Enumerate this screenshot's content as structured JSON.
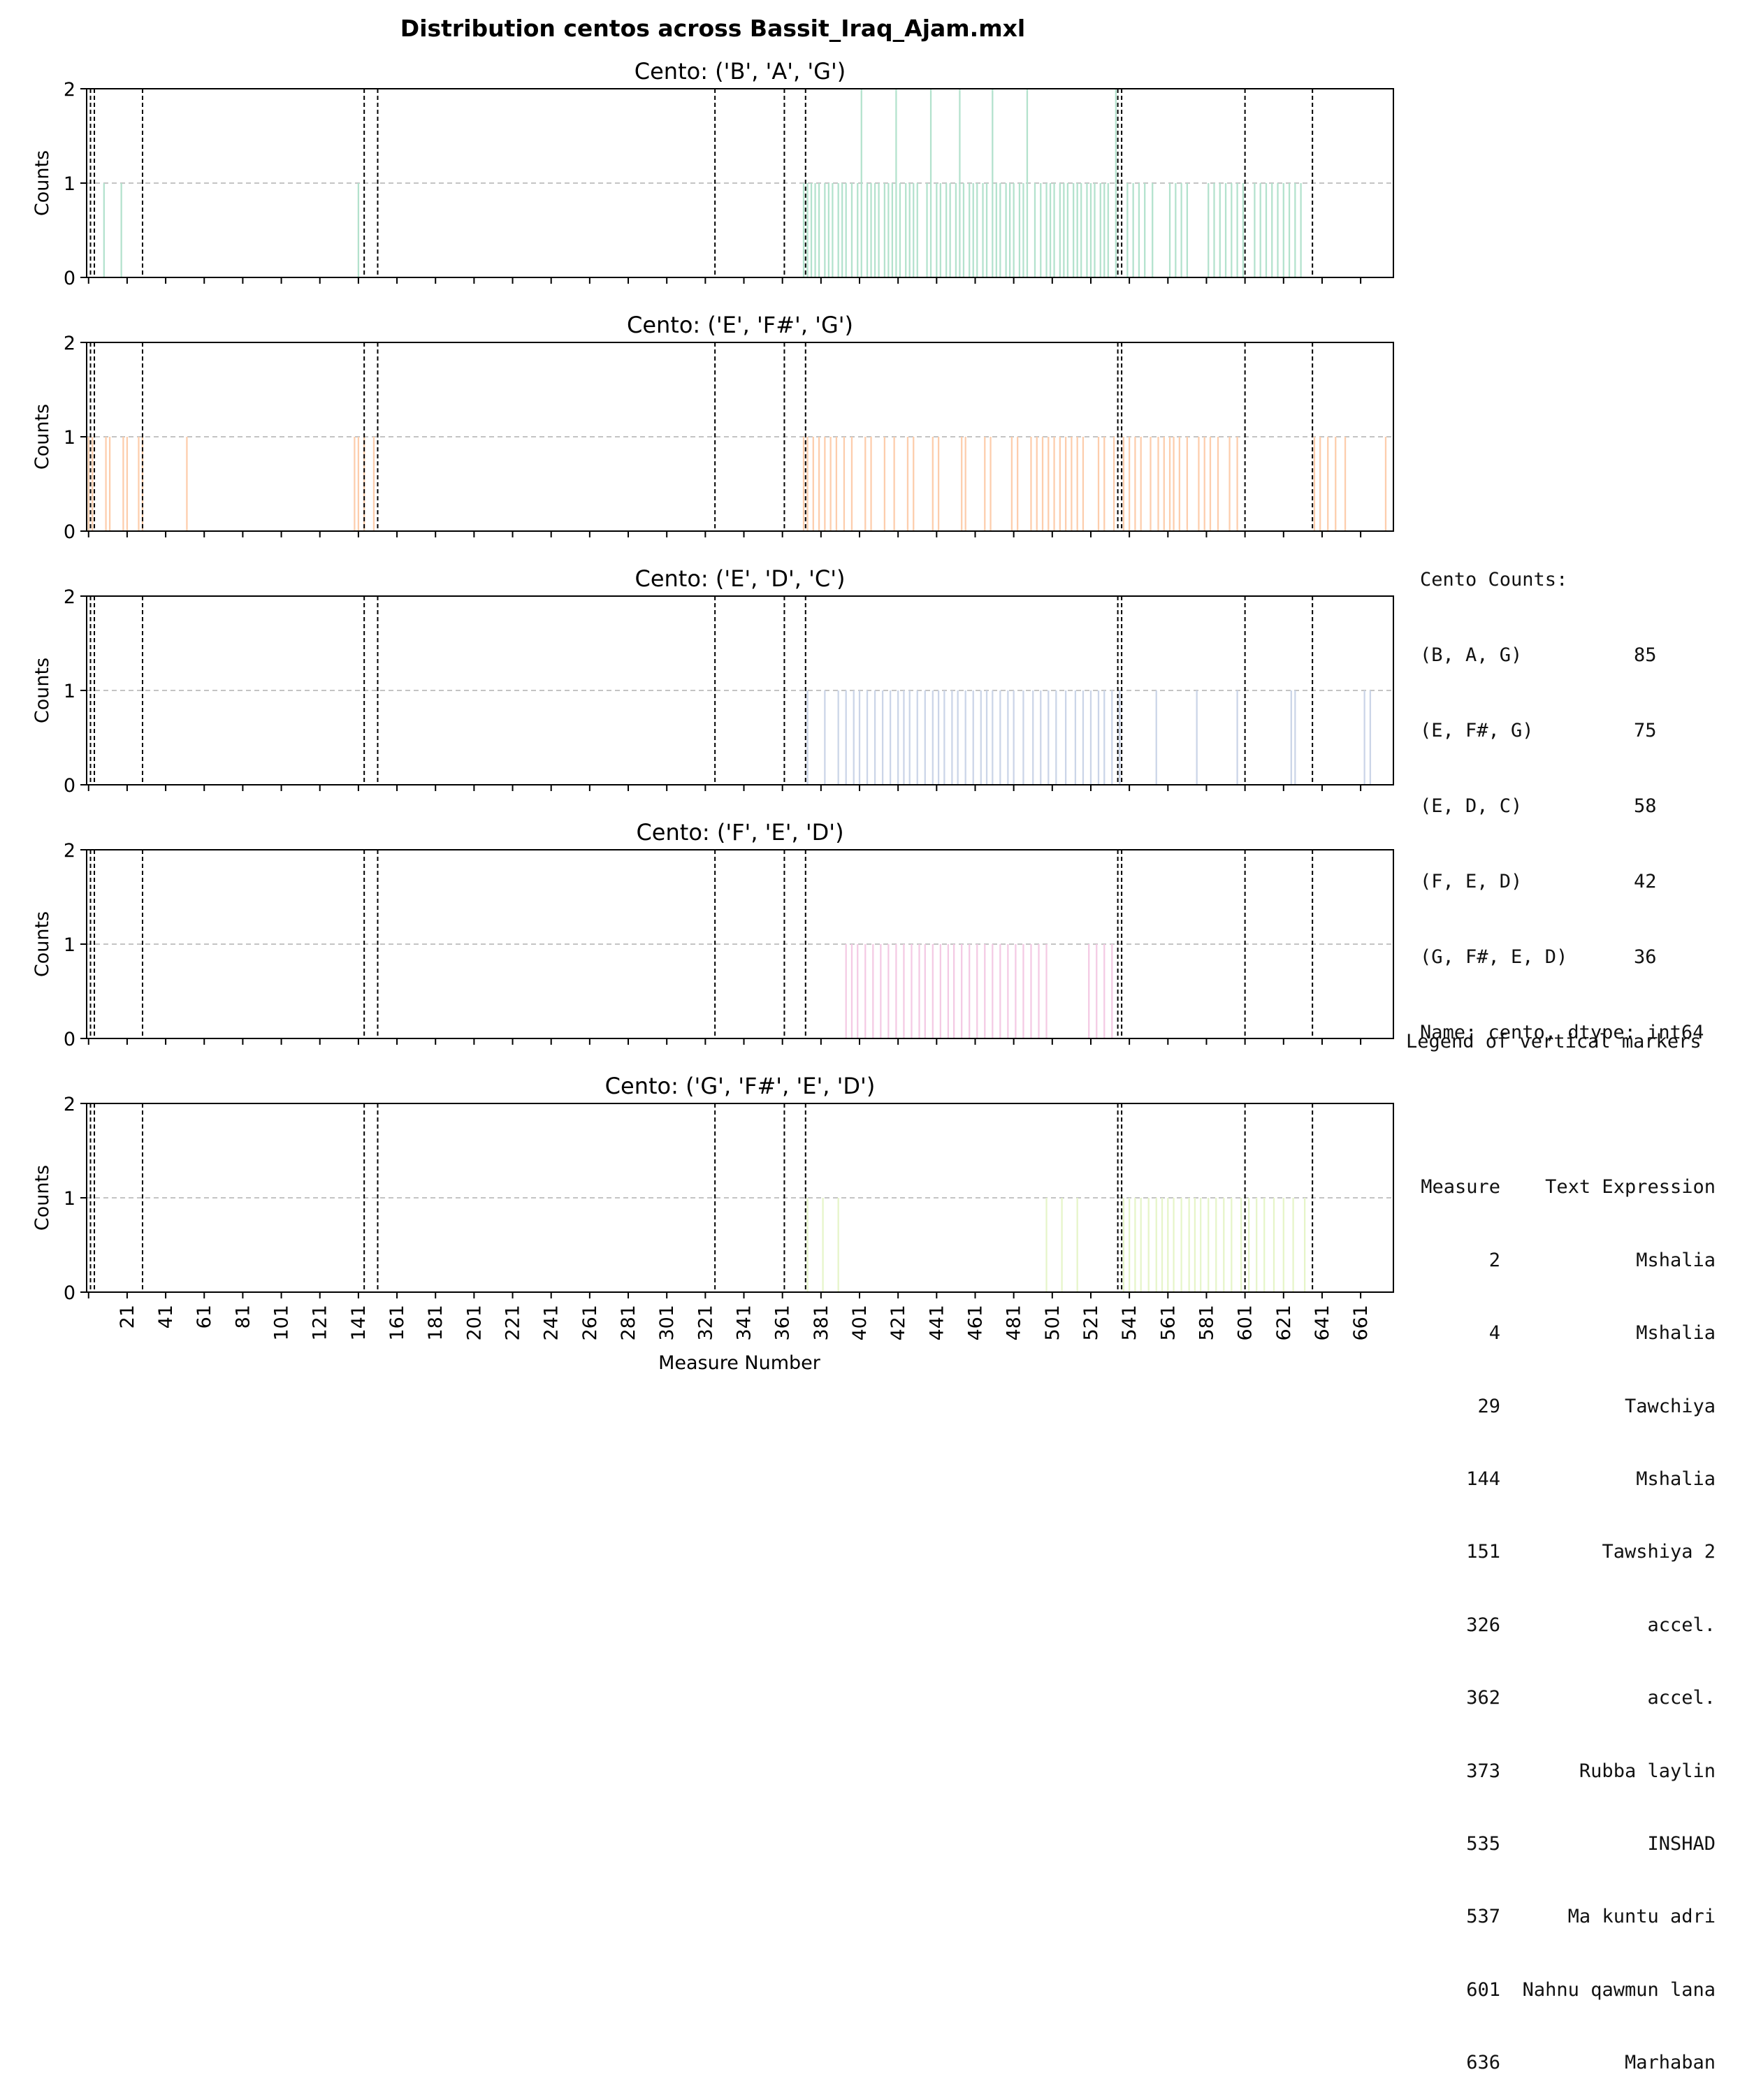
{
  "figure_title": "Distribution centos across Bassit_Iraq_Ajam.mxl",
  "xlabel": "Measure Number",
  "ylabel": "Counts",
  "x_ticks": [
    21,
    41,
    61,
    81,
    101,
    121,
    141,
    161,
    181,
    201,
    221,
    241,
    261,
    281,
    301,
    321,
    341,
    361,
    381,
    401,
    421,
    441,
    461,
    481,
    501,
    521,
    541,
    561,
    581,
    601,
    621,
    641,
    661
  ],
  "y_ticks": [
    0,
    1,
    2
  ],
  "xlim": [
    0,
    678
  ],
  "ylim": [
    0,
    2
  ],
  "vertical_markers": [
    0,
    2,
    4,
    29,
    144,
    151,
    326,
    362,
    373,
    535,
    537,
    601,
    636
  ],
  "cento_counts": {
    "title": "Cento Counts:",
    "rows": [
      {
        "label": "(B, A, G)",
        "value": "85"
      },
      {
        "label": "(E, F#, G)",
        "value": "75"
      },
      {
        "label": "(E, D, C)",
        "value": "58"
      },
      {
        "label": "(F, E, D)",
        "value": "42"
      },
      {
        "label": "(G, F#, E, D)",
        "value": "36"
      }
    ],
    "footer": "Name: cento, dtype: int64"
  },
  "markers_legend": {
    "title": "Legend of vertical markers",
    "header_measure": "Measure",
    "header_text": "Text Expression",
    "rows": [
      {
        "measure": "2",
        "text": "Mshalia"
      },
      {
        "measure": "4",
        "text": "Mshalia"
      },
      {
        "measure": "29",
        "text": "Tawchiya"
      },
      {
        "measure": "144",
        "text": "Mshalia"
      },
      {
        "measure": "151",
        "text": "Tawshiya 2"
      },
      {
        "measure": "326",
        "text": "accel."
      },
      {
        "measure": "362",
        "text": "accel."
      },
      {
        "measure": "373",
        "text": "Rubba laylin"
      },
      {
        "measure": "535",
        "text": "INSHAD"
      },
      {
        "measure": "537",
        "text": "Ma kuntu adri"
      },
      {
        "measure": "601",
        "text": "Nahnu qawmun lana"
      },
      {
        "measure": "636",
        "text": "Marhaban"
      }
    ]
  },
  "chart_data": [
    {
      "type": "bar",
      "title": "Cento: ('B', 'A', 'G')",
      "color": "#b3e2cd",
      "xlabel": "",
      "ylabel": "Counts",
      "ylim": [
        0,
        2
      ],
      "x": [
        9,
        18,
        141,
        372,
        374,
        376,
        378,
        380,
        383,
        385,
        387,
        390,
        392,
        394,
        397,
        400,
        402,
        405,
        407,
        409,
        411,
        414,
        416,
        418,
        420,
        422,
        425,
        427,
        429,
        431,
        436,
        438,
        441,
        443,
        446,
        448,
        451,
        453,
        455,
        458,
        460,
        462,
        465,
        467,
        470,
        472,
        474,
        477,
        479,
        481,
        484,
        486,
        488,
        492,
        495,
        498,
        500,
        502,
        505,
        507,
        509,
        512,
        514,
        516,
        519,
        521,
        523,
        526,
        528,
        530,
        534,
        540,
        543,
        546,
        549,
        553,
        562,
        565,
        568,
        571,
        582,
        585,
        588,
        591,
        594,
        597,
        600,
        606,
        609,
        612,
        615,
        618,
        621,
        624,
        627,
        630
      ],
      "values": [
        1,
        1,
        1,
        1,
        1,
        1,
        1,
        1,
        1,
        1,
        1,
        1,
        1,
        1,
        1,
        1,
        2,
        1,
        1,
        1,
        1,
        1,
        1,
        1,
        2,
        1,
        1,
        1,
        1,
        1,
        1,
        2,
        1,
        1,
        1,
        1,
        1,
        2,
        1,
        1,
        1,
        1,
        1,
        1,
        2,
        1,
        1,
        1,
        1,
        1,
        1,
        1,
        2,
        1,
        1,
        1,
        1,
        1,
        1,
        1,
        1,
        1,
        1,
        1,
        1,
        1,
        1,
        1,
        1,
        1,
        2,
        1,
        1,
        1,
        1,
        1,
        1,
        1,
        1,
        1,
        1,
        1,
        1,
        1,
        1,
        1,
        1,
        1,
        1,
        1,
        1,
        1,
        1,
        1,
        1,
        1
      ]
    },
    {
      "type": "bar",
      "title": "Cento: ('E', 'F#', 'G')",
      "color": "#fdcdac",
      "xlabel": "",
      "ylabel": "Counts",
      "ylim": [
        0,
        2
      ],
      "x": [
        1,
        3,
        10,
        12,
        19,
        21,
        27,
        29,
        52,
        139,
        141,
        144,
        149,
        372,
        374,
        377,
        380,
        383,
        386,
        389,
        393,
        397,
        404,
        407,
        414,
        419,
        426,
        429,
        439,
        442,
        454,
        456,
        466,
        469,
        480,
        483,
        490,
        493,
        496,
        499,
        502,
        505,
        508,
        511,
        514,
        517,
        525,
        528,
        533,
        538,
        541,
        544,
        547,
        552,
        556,
        559,
        562,
        564,
        567,
        571,
        577,
        580,
        583,
        587,
        593,
        597,
        637,
        640,
        644,
        648,
        653,
        674
      ],
      "values": [
        1,
        1,
        1,
        1,
        1,
        1,
        1,
        1,
        1,
        1,
        1,
        1,
        1,
        1,
        1,
        1,
        1,
        1,
        1,
        1,
        1,
        1,
        1,
        1,
        1,
        1,
        1,
        1,
        1,
        1,
        1,
        1,
        1,
        1,
        1,
        1,
        1,
        1,
        1,
        1,
        1,
        1,
        1,
        1,
        1,
        1,
        1,
        1,
        1,
        1,
        1,
        1,
        1,
        1,
        1,
        1,
        1,
        1,
        1,
        1,
        1,
        1,
        1,
        1,
        1,
        1,
        1,
        1,
        1,
        1,
        1,
        1
      ]
    },
    {
      "type": "bar",
      "title": "Cento: ('E', 'D', 'C')",
      "color": "#cbd5e8",
      "xlabel": "",
      "ylabel": "Counts",
      "ylim": [
        0,
        2
      ],
      "x": [
        374,
        383,
        390,
        394,
        398,
        401,
        405,
        409,
        413,
        417,
        421,
        424,
        427,
        431,
        435,
        439,
        442,
        445,
        449,
        452,
        456,
        460,
        464,
        467,
        470,
        474,
        478,
        481,
        486,
        491,
        495,
        499,
        503,
        508,
        513,
        517,
        521,
        525,
        528,
        532,
        536,
        555,
        576,
        597,
        625,
        627,
        663,
        666
      ],
      "values": [
        1,
        1,
        1,
        1,
        1,
        1,
        1,
        1,
        1,
        1,
        1,
        1,
        1,
        1,
        1,
        1,
        1,
        1,
        1,
        1,
        1,
        1,
        1,
        1,
        1,
        1,
        1,
        1,
        1,
        1,
        1,
        1,
        1,
        1,
        1,
        1,
        1,
        1,
        1,
        1,
        1,
        1,
        1,
        1,
        1,
        1,
        1,
        1
      ]
    },
    {
      "type": "bar",
      "title": "Cento: ('F', 'E', 'D')",
      "color": "#f4cae4",
      "xlabel": "",
      "ylabel": "Counts",
      "ylim": [
        0,
        2
      ],
      "x": [
        394,
        397,
        400,
        404,
        408,
        412,
        416,
        420,
        424,
        428,
        432,
        435,
        439,
        443,
        447,
        450,
        454,
        458,
        462,
        466,
        470,
        474,
        478,
        482,
        486,
        490,
        494,
        498,
        520,
        524,
        528,
        532
      ],
      "values": [
        1,
        1,
        1,
        1,
        1,
        1,
        1,
        1,
        1,
        1,
        1,
        1,
        1,
        1,
        1,
        1,
        1,
        1,
        1,
        1,
        1,
        1,
        1,
        1,
        1,
        1,
        1,
        1,
        1,
        1,
        1,
        1
      ]
    },
    {
      "type": "bar",
      "title": "Cento: ('G', 'F#', 'E', 'D')",
      "color": "#e6f5c9",
      "xlabel": "",
      "ylabel": "Counts",
      "ylim": [
        0,
        2
      ],
      "x": [
        374,
        382,
        390,
        498,
        506,
        514,
        538,
        541,
        544,
        547,
        551,
        555,
        558,
        561,
        564,
        568,
        572,
        575,
        578,
        582,
        586,
        590,
        594,
        599,
        603,
        607,
        611,
        616,
        621,
        626,
        632
      ],
      "values": [
        1,
        1,
        1,
        1,
        1,
        1,
        1,
        1,
        1,
        1,
        1,
        1,
        1,
        1,
        1,
        1,
        1,
        1,
        1,
        1,
        1,
        1,
        1,
        1,
        1,
        1,
        1,
        1,
        1,
        1,
        1
      ]
    }
  ]
}
